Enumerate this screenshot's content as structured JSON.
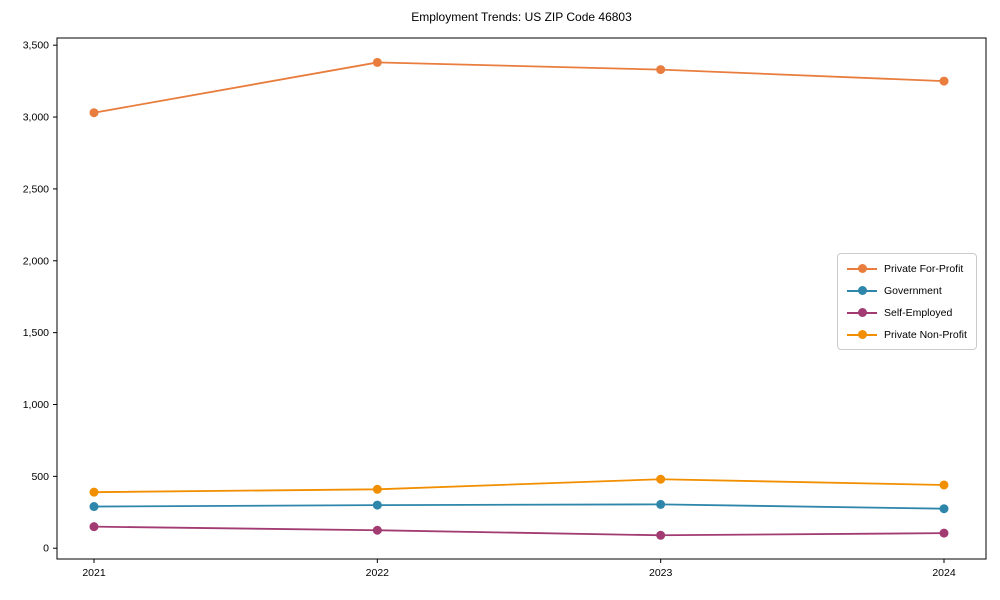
{
  "chart_data": {
    "type": "line",
    "title": "Employment Trends: US ZIP Code 46803",
    "x": [
      2021,
      2022,
      2023,
      2024
    ],
    "x_tick_labels": [
      "2021",
      "2022",
      "2023",
      "2024"
    ],
    "series": [
      {
        "name": "Private For-Profit",
        "color": "#e87d3e",
        "values": [
          3030,
          3380,
          3330,
          3250
        ]
      },
      {
        "name": "Government",
        "color": "#2e86ab",
        "values": [
          290,
          300,
          305,
          275
        ]
      },
      {
        "name": "Self-Employed",
        "color": "#a23b72",
        "values": [
          150,
          125,
          90,
          105
        ]
      },
      {
        "name": "Private Non-Profit",
        "color": "#f18f01",
        "values": [
          390,
          410,
          480,
          440
        ]
      }
    ],
    "yticks": [
      0,
      500,
      1000,
      1500,
      2000,
      2500,
      3000,
      3500
    ],
    "ytick_labels": [
      "0",
      "500",
      "1,000",
      "1,500",
      "2,000",
      "2,500",
      "3,000",
      "3,500"
    ],
    "ylim": [
      -75,
      3550
    ],
    "xlabel": "",
    "ylabel": "",
    "grid": false,
    "legend_position": "center-right",
    "axis_color": "#000000",
    "background_color": "#ffffff"
  }
}
